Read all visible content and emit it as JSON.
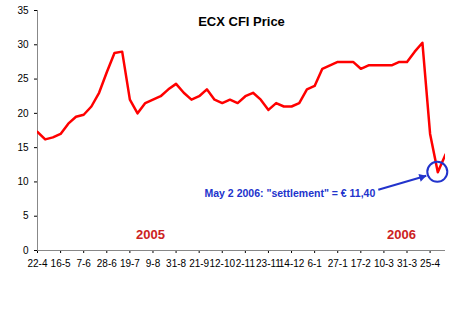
{
  "chart_data": {
    "type": "line",
    "title": "ECX CFI Price",
    "categories": [
      "22-4",
      null,
      null,
      "16-5",
      null,
      null,
      "7-6",
      null,
      null,
      "28-6",
      null,
      null,
      "19-7",
      null,
      null,
      "9-8",
      null,
      null,
      "31-8",
      null,
      null,
      "21-9",
      null,
      null,
      "12-10",
      null,
      null,
      "2-11",
      null,
      null,
      "23-11",
      null,
      null,
      "14-12",
      null,
      null,
      "6-1",
      null,
      null,
      "27-1",
      null,
      null,
      "17-2",
      null,
      null,
      "10-3",
      null,
      null,
      "31-3",
      null,
      null,
      "25-4",
      null,
      null
    ],
    "values": [
      17.3,
      16.2,
      16.5,
      17,
      18.5,
      19.5,
      19.8,
      21,
      23,
      26,
      28.8,
      29,
      22,
      20,
      21.5,
      22,
      22.5,
      23.5,
      24.3,
      23,
      22,
      22.5,
      23.5,
      22,
      21.5,
      22,
      21.5,
      22.5,
      23,
      22,
      20.5,
      21.5,
      21,
      21,
      21.5,
      23.5,
      24,
      26.5,
      27,
      27.5,
      27.5,
      27.5,
      26.5,
      27,
      27,
      27,
      27,
      27.5,
      27.5,
      29,
      30.3,
      17,
      11.4,
      14
    ],
    "color": "#ff0000",
    "ylim": [
      0,
      35
    ],
    "yticks": [
      0,
      5,
      10,
      15,
      20,
      25,
      30,
      35
    ],
    "grid": false,
    "annotations": [
      {
        "text": "2005",
        "color": "#cc2222"
      },
      {
        "text": "2006",
        "color": "#cc2222"
      },
      {
        "text": "May 2 2006: \"settlement\" = € 11,40",
        "color": "#2233cc"
      }
    ]
  }
}
